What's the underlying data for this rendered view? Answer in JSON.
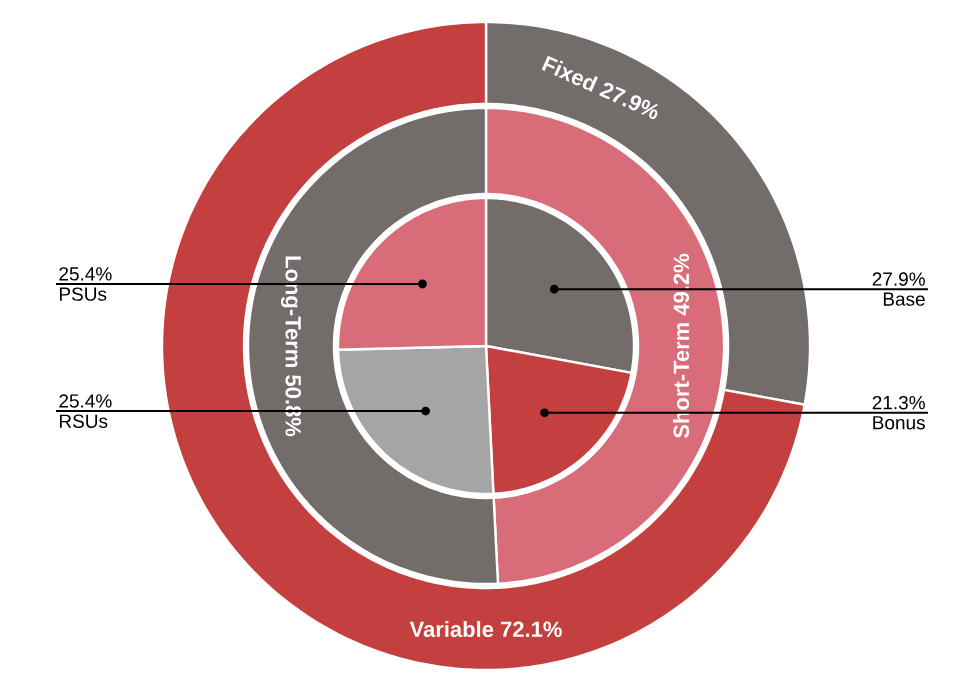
{
  "chart_data": [
    {
      "type": "donut",
      "categories": [
        "Fixed",
        "Variable"
      ],
      "values": [
        27.9,
        72.1
      ],
      "value_labels": [
        "27.9%",
        "72.1%"
      ],
      "colors": [
        "#726c6b",
        "#c4403f"
      ]
    },
    {
      "type": "donut",
      "categories": [
        "Short-Term",
        "Long-Term"
      ],
      "values": [
        49.2,
        50.8
      ],
      "value_labels": [
        "49.2%",
        "50.8%"
      ],
      "colors": [
        "#d86c79",
        "#726c6b"
      ]
    },
    {
      "type": "pie",
      "categories": [
        "Base",
        "Bonus",
        "RSUs",
        "PSUs"
      ],
      "values": [
        27.9,
        21.3,
        25.4,
        25.4
      ],
      "value_labels": [
        "27.9%",
        "21.3%",
        "25.4%",
        "25.4%"
      ],
      "colors": [
        "#726c6b",
        "#c4403f",
        "#a5a5a5",
        "#d86c79"
      ]
    }
  ]
}
